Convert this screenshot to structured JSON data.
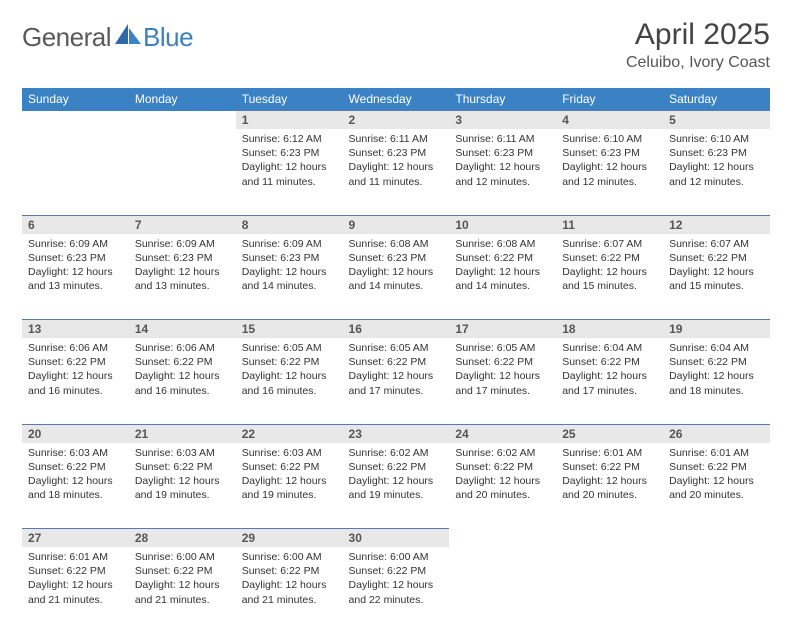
{
  "brand": {
    "part1": "General",
    "part2": "Blue"
  },
  "title": "April 2025",
  "location": "Celuibo, Ivory Coast",
  "colors": {
    "header_bg": "#3b82c4",
    "daynum_bg": "#e8e8e8",
    "daynum_border": "#5a7ba8",
    "text": "#333333",
    "brand_gray": "#5a5a5a",
    "brand_blue": "#3b7fc4"
  },
  "weekdays": [
    "Sunday",
    "Monday",
    "Tuesday",
    "Wednesday",
    "Thursday",
    "Friday",
    "Saturday"
  ],
  "weeks": [
    {
      "nums": [
        "",
        "",
        "1",
        "2",
        "3",
        "4",
        "5"
      ],
      "cells": [
        null,
        null,
        {
          "sr": "6:12 AM",
          "ss": "6:23 PM",
          "dl": "12 hours and 11 minutes."
        },
        {
          "sr": "6:11 AM",
          "ss": "6:23 PM",
          "dl": "12 hours and 11 minutes."
        },
        {
          "sr": "6:11 AM",
          "ss": "6:23 PM",
          "dl": "12 hours and 12 minutes."
        },
        {
          "sr": "6:10 AM",
          "ss": "6:23 PM",
          "dl": "12 hours and 12 minutes."
        },
        {
          "sr": "6:10 AM",
          "ss": "6:23 PM",
          "dl": "12 hours and 12 minutes."
        }
      ]
    },
    {
      "nums": [
        "6",
        "7",
        "8",
        "9",
        "10",
        "11",
        "12"
      ],
      "cells": [
        {
          "sr": "6:09 AM",
          "ss": "6:23 PM",
          "dl": "12 hours and 13 minutes."
        },
        {
          "sr": "6:09 AM",
          "ss": "6:23 PM",
          "dl": "12 hours and 13 minutes."
        },
        {
          "sr": "6:09 AM",
          "ss": "6:23 PM",
          "dl": "12 hours and 14 minutes."
        },
        {
          "sr": "6:08 AM",
          "ss": "6:23 PM",
          "dl": "12 hours and 14 minutes."
        },
        {
          "sr": "6:08 AM",
          "ss": "6:22 PM",
          "dl": "12 hours and 14 minutes."
        },
        {
          "sr": "6:07 AM",
          "ss": "6:22 PM",
          "dl": "12 hours and 15 minutes."
        },
        {
          "sr": "6:07 AM",
          "ss": "6:22 PM",
          "dl": "12 hours and 15 minutes."
        }
      ]
    },
    {
      "nums": [
        "13",
        "14",
        "15",
        "16",
        "17",
        "18",
        "19"
      ],
      "cells": [
        {
          "sr": "6:06 AM",
          "ss": "6:22 PM",
          "dl": "12 hours and 16 minutes."
        },
        {
          "sr": "6:06 AM",
          "ss": "6:22 PM",
          "dl": "12 hours and 16 minutes."
        },
        {
          "sr": "6:05 AM",
          "ss": "6:22 PM",
          "dl": "12 hours and 16 minutes."
        },
        {
          "sr": "6:05 AM",
          "ss": "6:22 PM",
          "dl": "12 hours and 17 minutes."
        },
        {
          "sr": "6:05 AM",
          "ss": "6:22 PM",
          "dl": "12 hours and 17 minutes."
        },
        {
          "sr": "6:04 AM",
          "ss": "6:22 PM",
          "dl": "12 hours and 17 minutes."
        },
        {
          "sr": "6:04 AM",
          "ss": "6:22 PM",
          "dl": "12 hours and 18 minutes."
        }
      ]
    },
    {
      "nums": [
        "20",
        "21",
        "22",
        "23",
        "24",
        "25",
        "26"
      ],
      "cells": [
        {
          "sr": "6:03 AM",
          "ss": "6:22 PM",
          "dl": "12 hours and 18 minutes."
        },
        {
          "sr": "6:03 AM",
          "ss": "6:22 PM",
          "dl": "12 hours and 19 minutes."
        },
        {
          "sr": "6:03 AM",
          "ss": "6:22 PM",
          "dl": "12 hours and 19 minutes."
        },
        {
          "sr": "6:02 AM",
          "ss": "6:22 PM",
          "dl": "12 hours and 19 minutes."
        },
        {
          "sr": "6:02 AM",
          "ss": "6:22 PM",
          "dl": "12 hours and 20 minutes."
        },
        {
          "sr": "6:01 AM",
          "ss": "6:22 PM",
          "dl": "12 hours and 20 minutes."
        },
        {
          "sr": "6:01 AM",
          "ss": "6:22 PM",
          "dl": "12 hours and 20 minutes."
        }
      ]
    },
    {
      "nums": [
        "27",
        "28",
        "29",
        "30",
        "",
        "",
        ""
      ],
      "cells": [
        {
          "sr": "6:01 AM",
          "ss": "6:22 PM",
          "dl": "12 hours and 21 minutes."
        },
        {
          "sr": "6:00 AM",
          "ss": "6:22 PM",
          "dl": "12 hours and 21 minutes."
        },
        {
          "sr": "6:00 AM",
          "ss": "6:22 PM",
          "dl": "12 hours and 21 minutes."
        },
        {
          "sr": "6:00 AM",
          "ss": "6:22 PM",
          "dl": "12 hours and 22 minutes."
        },
        null,
        null,
        null
      ]
    }
  ],
  "labels": {
    "sunrise": "Sunrise:",
    "sunset": "Sunset:",
    "daylight": "Daylight:"
  }
}
